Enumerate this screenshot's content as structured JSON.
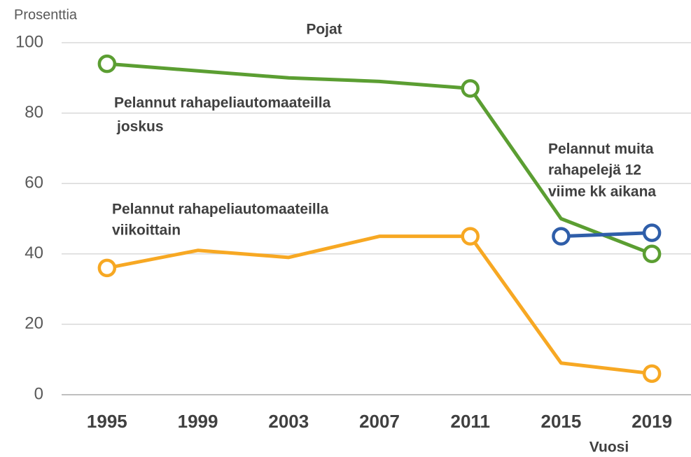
{
  "chart_data": {
    "type": "line",
    "title": "Pojat",
    "y_label": "Prosenttia",
    "x_label": "Vuosi",
    "categories": [
      "1995",
      "1999",
      "2003",
      "2007",
      "2011",
      "2015",
      "2019"
    ],
    "ylim": [
      0,
      100
    ],
    "yticks": [
      0,
      20,
      40,
      60,
      80,
      100
    ],
    "grid": true,
    "series": [
      {
        "name": [
          "Pelannut rahapeliautomaateilla",
          "joskus"
        ],
        "color": "#5b9e32",
        "values": [
          94,
          92,
          90,
          89,
          87,
          50,
          40
        ],
        "markers": [
          true,
          false,
          false,
          false,
          true,
          false,
          true
        ]
      },
      {
        "name": [
          "Pelannut rahapeliautomaateilla",
          "viikoittain"
        ],
        "color": "#f7a823",
        "values": [
          36,
          41,
          39,
          45,
          45,
          9,
          6
        ],
        "markers": [
          true,
          false,
          false,
          false,
          true,
          false,
          true
        ]
      },
      {
        "name": [
          "Pelannut muita",
          "rahapelejä 12",
          "viime kk aikana"
        ],
        "color": "#2f5ea9",
        "values": [
          null,
          null,
          null,
          null,
          null,
          45,
          46
        ],
        "markers": [
          false,
          false,
          false,
          false,
          false,
          true,
          true
        ]
      }
    ]
  }
}
